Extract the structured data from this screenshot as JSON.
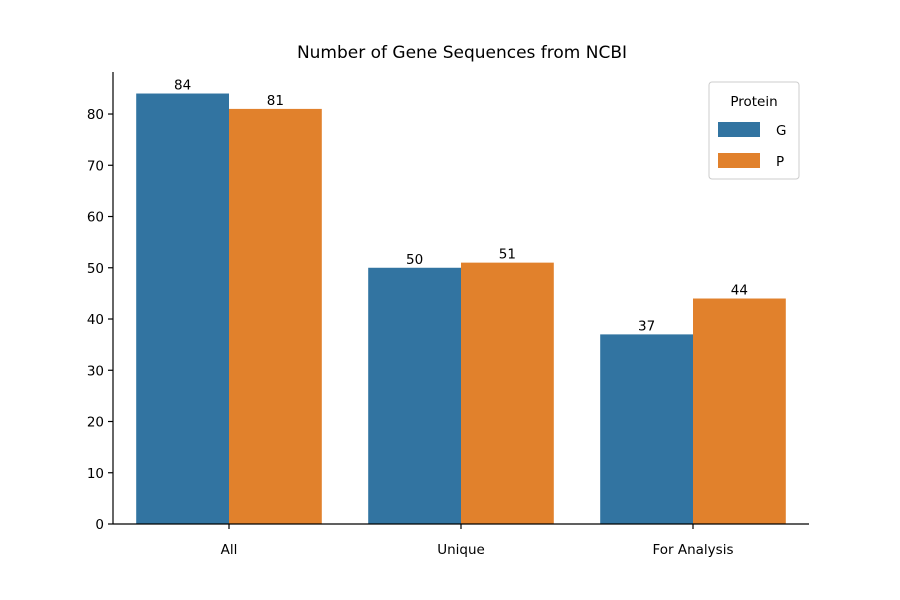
{
  "chart_data": {
    "type": "bar",
    "title": "Number of Gene Sequences from NCBI",
    "xlabel": "",
    "ylabel": "",
    "categories": [
      "All",
      "Unique",
      "For Analysis"
    ],
    "series": [
      {
        "name": "G",
        "values": [
          84,
          50,
          37
        ],
        "color": "#3274a1"
      },
      {
        "name": "P",
        "values": [
          81,
          51,
          44
        ],
        "color": "#e1812c"
      }
    ],
    "ylim": [
      0,
      88.2
    ],
    "yticks": [
      0,
      10,
      20,
      30,
      40,
      50,
      60,
      70,
      80
    ],
    "legend": {
      "title": "Protein",
      "placement": "top-right"
    },
    "grid": false,
    "data_labels": true
  }
}
